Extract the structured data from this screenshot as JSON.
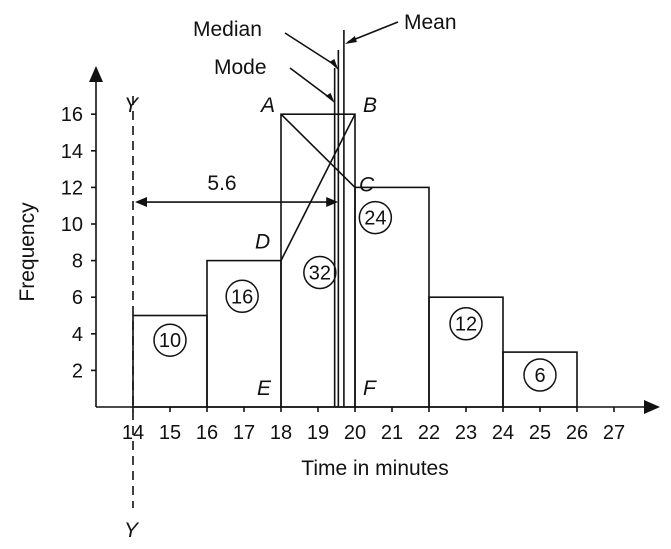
{
  "chart_data": {
    "type": "bar",
    "xlabel": "Time in minutes",
    "ylabel": "Frequency",
    "x_ticks": [
      "14",
      "15",
      "16",
      "17",
      "18",
      "19",
      "20",
      "21",
      "22",
      "23",
      "24",
      "25",
      "26",
      "27"
    ],
    "y_ticks": [
      "2",
      "4",
      "6",
      "8",
      "10",
      "12",
      "14",
      "16"
    ],
    "xlim": [
      14,
      27
    ],
    "ylim": [
      0,
      16
    ],
    "bins": [
      {
        "from": 14,
        "to": 16,
        "value": 5,
        "label": "10"
      },
      {
        "from": 16,
        "to": 18,
        "value": 8,
        "label": "16"
      },
      {
        "from": 18,
        "to": 20,
        "value": 16,
        "label": "32"
      },
      {
        "from": 20,
        "to": 22,
        "value": 12,
        "label": "24"
      },
      {
        "from": 22,
        "to": 24,
        "value": 6,
        "label": "12"
      },
      {
        "from": 24,
        "to": 26,
        "value": 3,
        "label": "6"
      }
    ],
    "points": {
      "A": {
        "x": 18,
        "y": 16
      },
      "B": {
        "x": 20,
        "y": 16
      },
      "C": {
        "x": 20,
        "y": 12
      },
      "D": {
        "x": 18,
        "y": 8
      },
      "E": {
        "x": 18,
        "y": 0
      },
      "F": {
        "x": 20,
        "y": 0
      }
    },
    "lines": {
      "mode": {
        "label": "Mode",
        "x": 19.45
      },
      "median": {
        "label": "Median",
        "x": 19.55
      },
      "mean": {
        "label": "Mean",
        "x": 19.7
      }
    },
    "yy_line": {
      "label": "Y",
      "x": 14
    },
    "dimension": {
      "label": "5.6",
      "from": 14,
      "to": 19.6,
      "y": 11.2
    }
  }
}
